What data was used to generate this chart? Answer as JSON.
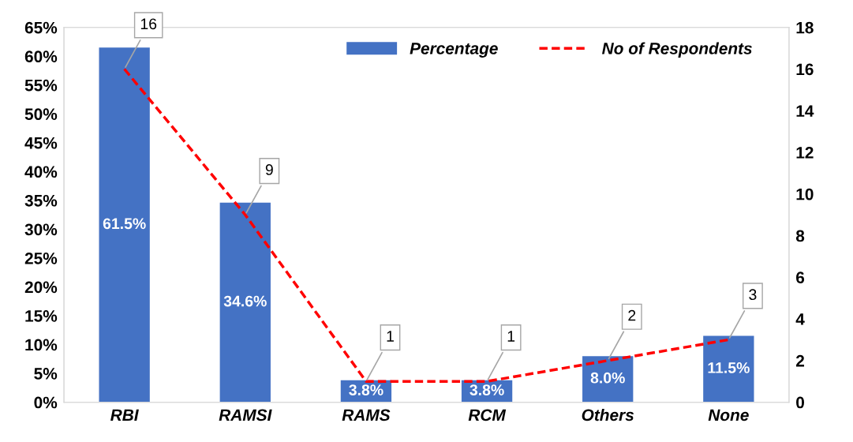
{
  "chart_data": {
    "type": "bar",
    "categories": [
      "RBI",
      "RAMSI",
      "RAMS",
      "RCM",
      "Others",
      "None"
    ],
    "series": [
      {
        "name": "Percentage",
        "color": "#4472c4",
        "values": [
          61.5,
          34.6,
          3.8,
          3.8,
          8.0,
          11.5
        ],
        "value_labels": [
          "61.5%",
          "34.6%",
          "3.8%",
          "3.8%",
          "8.0%",
          "11.5%"
        ]
      },
      {
        "name": "No of Respondents",
        "type": "line",
        "axis": "y2",
        "color": "#ff0000",
        "line_style": "dashed",
        "values": [
          16,
          9,
          1,
          1,
          2,
          3
        ],
        "data_labels": true
      }
    ],
    "ylim": [
      0,
      65
    ],
    "yticks": [
      {
        "value": 0,
        "label": "0%"
      },
      {
        "value": 5,
        "label": "5%"
      },
      {
        "value": 10,
        "label": "10%"
      },
      {
        "value": 15,
        "label": "15%"
      },
      {
        "value": 20,
        "label": "20%"
      },
      {
        "value": 25,
        "label": "25%"
      },
      {
        "value": 30,
        "label": "30%"
      },
      {
        "value": 35,
        "label": "35%"
      },
      {
        "value": 40,
        "label": "40%"
      },
      {
        "value": 45,
        "label": "45%"
      },
      {
        "value": 50,
        "label": "50%"
      },
      {
        "value": 55,
        "label": "55%"
      },
      {
        "value": 60,
        "label": "60%"
      },
      {
        "value": 65,
        "label": "65%"
      }
    ],
    "y2lim": [
      0,
      18
    ],
    "y2ticks": [
      0,
      2,
      4,
      6,
      8,
      10,
      12,
      14,
      16,
      18
    ],
    "grid": false,
    "legend": "top right",
    "marker": "none"
  }
}
